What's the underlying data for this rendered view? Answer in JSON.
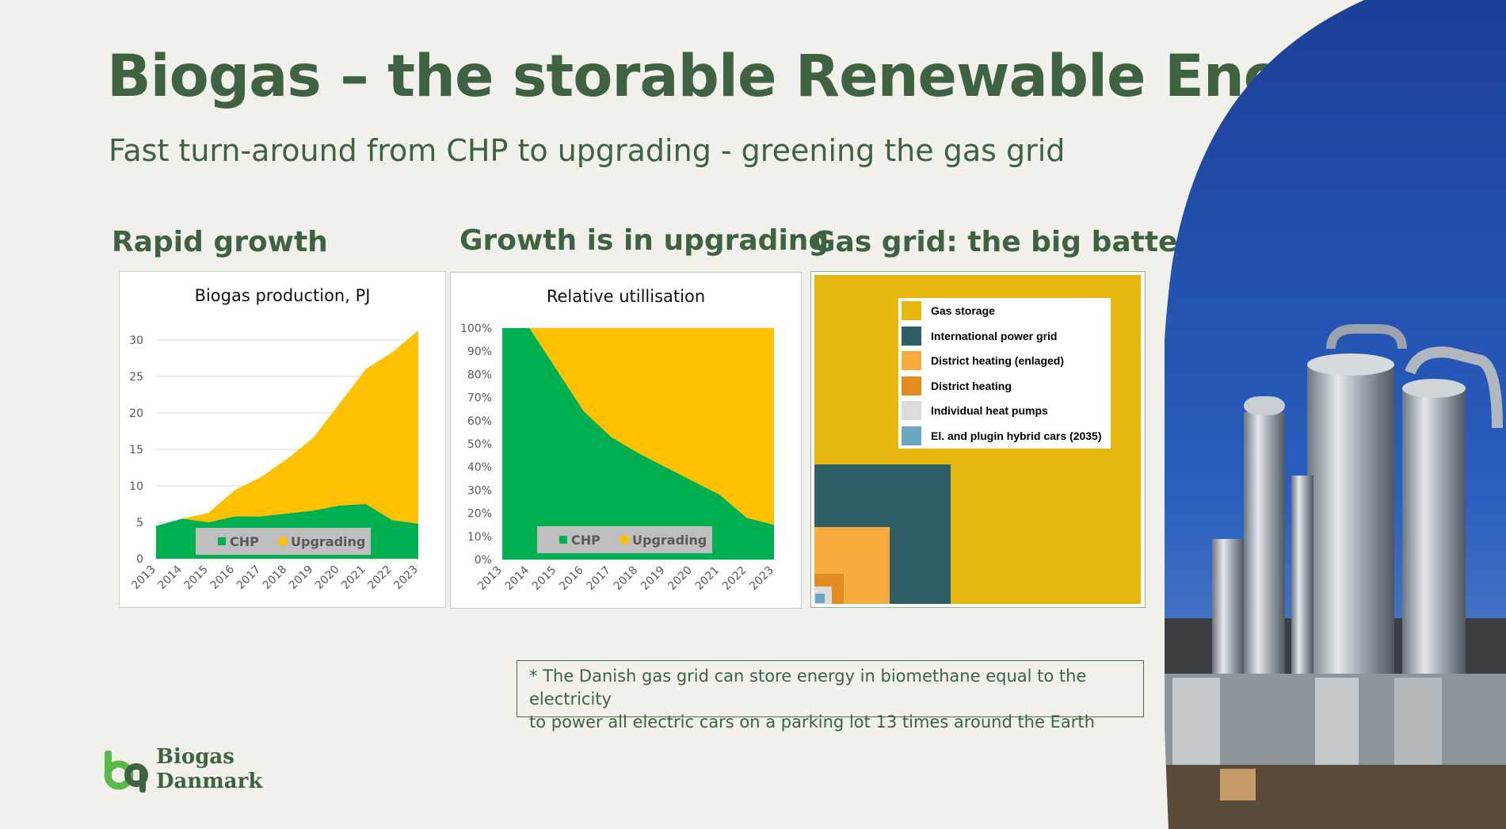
{
  "slide": {
    "title": "Biogas – the storable Renewable Energy",
    "subtitle": "Fast turn-around from CHP to upgrading - greening the gas grid",
    "sections": [
      "Rapid growth",
      "Growth is in upgrading",
      "Gas grid: the big battery*"
    ],
    "note_line1": "* The Danish gas grid can store energy in biomethane equal to the electricity",
    "note_line2": "to power all electric cars on a parking lot 13 times around the Earth",
    "logo_line1": "Biogas",
    "logo_line2": "Danmark"
  },
  "colors": {
    "chp": "#00b050",
    "upgrading": "#ffc000",
    "title": "#3e6242",
    "sky": "#1d4aa8"
  },
  "chart_data": [
    {
      "type": "area",
      "title": "Biogas production, PJ",
      "categories": [
        "2013",
        "2014",
        "2015",
        "2016",
        "2017",
        "2018",
        "2019",
        "2020",
        "2021",
        "2022",
        "2023"
      ],
      "series": [
        {
          "name": "CHP",
          "values": [
            4.5,
            5.5,
            5.0,
            5.8,
            5.8,
            6.2,
            6.6,
            7.3,
            7.5,
            5.3,
            4.8
          ]
        },
        {
          "name": "Upgrading",
          "values": [
            0,
            0,
            1.3,
            3.6,
            5.4,
            7.5,
            10.0,
            14.0,
            18.5,
            23.0,
            26.5
          ]
        }
      ],
      "ylim": [
        0,
        30
      ],
      "yticks": [
        "0",
        "5",
        "10",
        "15",
        "20",
        "25",
        "30"
      ],
      "legend": "bottom"
    },
    {
      "type": "area",
      "title": "Relative utillisation",
      "categories": [
        "2013",
        "2014",
        "2015",
        "2016",
        "2017",
        "2018",
        "2019",
        "2020",
        "2021",
        "2022",
        "2023"
      ],
      "series": [
        {
          "name": "CHP",
          "values": [
            1.0,
            1.0,
            0.82,
            0.64,
            0.53,
            0.46,
            0.4,
            0.34,
            0.28,
            0.18,
            0.15
          ]
        },
        {
          "name": "Upgrading",
          "values": [
            0,
            0,
            0.18,
            0.36,
            0.47,
            0.54,
            0.6,
            0.66,
            0.72,
            0.82,
            0.85
          ]
        }
      ],
      "ylim": [
        0,
        1
      ],
      "yticks": [
        "0%",
        "10%",
        "20%",
        "30%",
        "40%",
        "50%",
        "60%",
        "70%",
        "80%",
        "90%",
        "100%"
      ],
      "legend": "bottom"
    },
    {
      "type": "treemap-squares",
      "legend_items": [
        {
          "label": "Gas storage",
          "color": "#e6b80f"
        },
        {
          "label": "International power grid",
          "color": "#2e5f66"
        },
        {
          "label": "District heating (enlaged)",
          "color": "#f7ab3f"
        },
        {
          "label": "District heating",
          "color": "#e38b1e"
        },
        {
          "label": "Individual heat pumps",
          "color": "#dcdcdc"
        },
        {
          "label": "El. and plugin hybrid cars (2035)",
          "color": "#6aa8c1"
        }
      ],
      "relative_size": [
        1.0,
        0.42,
        0.23,
        0.09,
        0.05,
        0.03
      ]
    }
  ]
}
